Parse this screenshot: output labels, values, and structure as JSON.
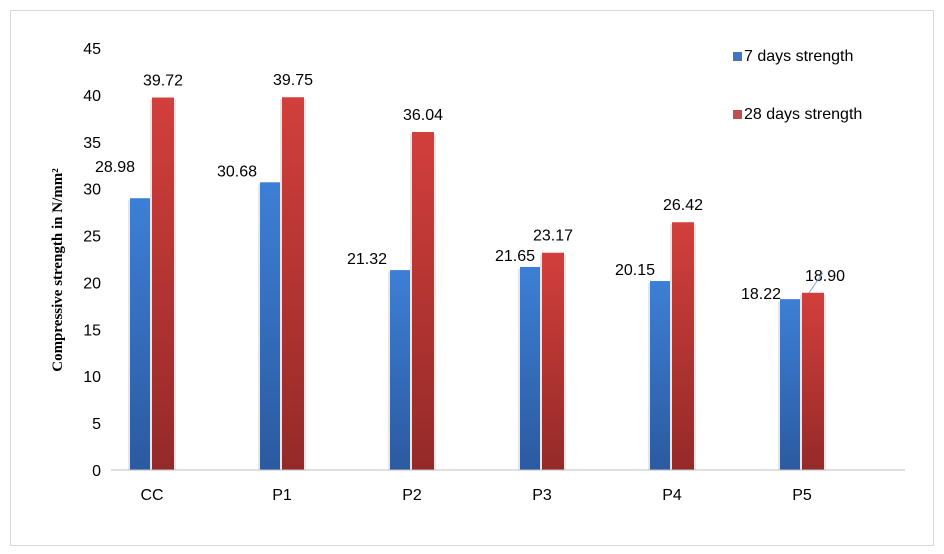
{
  "chart_data": {
    "type": "bar",
    "categories": [
      "CC",
      "P1",
      "P2",
      "P3",
      "P4",
      "P5"
    ],
    "series": [
      {
        "name": "7 days strength",
        "values": [
          28.98,
          30.68,
          21.32,
          21.65,
          20.15,
          18.22
        ],
        "labels": [
          "28.98",
          "30.68",
          "21.32",
          "21.65",
          "20.15",
          "18.22"
        ],
        "color": "#4472c4"
      },
      {
        "name": "28 days strength",
        "values": [
          39.72,
          39.75,
          36.04,
          23.17,
          26.42,
          18.9
        ],
        "labels": [
          "39.72",
          "39.75",
          "36.04",
          "23.17",
          "26.42",
          "18.90"
        ],
        "color": "#c0504d"
      }
    ],
    "ylabel": "Compressive strength in N/mm²",
    "xlabel": "",
    "ylim": [
      0,
      45
    ],
    "yticks": [
      "0",
      "5",
      "10",
      "15",
      "20",
      "25",
      "30",
      "35",
      "40",
      "45"
    ],
    "legend_position": "top-right",
    "grid": false
  }
}
